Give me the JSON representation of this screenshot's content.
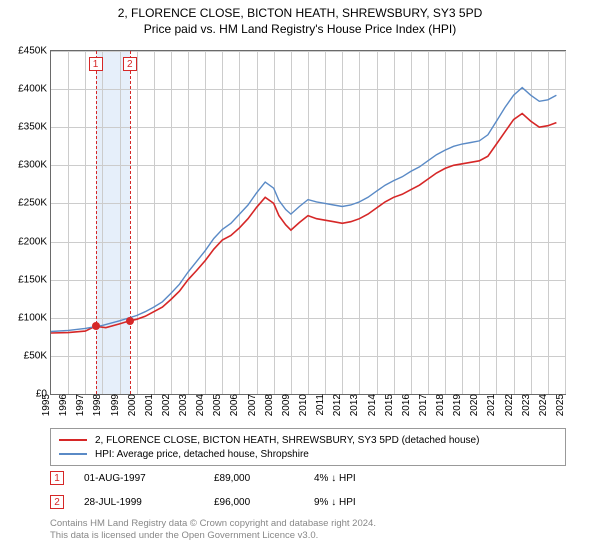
{
  "title_line1": "2, FLORENCE CLOSE, BICTON HEATH, SHREWSBURY, SY3 5PD",
  "title_line2": "Price paid vs. HM Land Registry's House Price Index (HPI)",
  "chart": {
    "type": "line",
    "background_color": "#ffffff",
    "grid_color": "#cccccc",
    "axis_color": "#6a6a6a",
    "xlim": [
      1995,
      2025
    ],
    "ylim": [
      0,
      450000
    ],
    "ytick_step": 50000,
    "ytick_labels": [
      "£0",
      "£50K",
      "£100K",
      "£150K",
      "£200K",
      "£250K",
      "£300K",
      "£350K",
      "£400K",
      "£450K"
    ],
    "xtick_step": 1,
    "xtick_labels": [
      "1995",
      "1996",
      "1997",
      "1998",
      "1999",
      "2000",
      "2001",
      "2002",
      "2003",
      "2004",
      "2005",
      "2006",
      "2007",
      "2008",
      "2009",
      "2010",
      "2011",
      "2012",
      "2013",
      "2014",
      "2015",
      "2016",
      "2017",
      "2018",
      "2019",
      "2020",
      "2021",
      "2022",
      "2023",
      "2024",
      "2025"
    ],
    "tick_fontsize": 10,
    "title_fontsize": 12,
    "highlight_band": {
      "from": 1997.6,
      "to": 1999.6,
      "color": "#e6effa"
    },
    "series": [
      {
        "id": "price_paid",
        "label": "2, FLORENCE CLOSE, BICTON HEATH, SHREWSBURY, SY3 5PD (detached house)",
        "color": "#d62727",
        "line_width": 1.6,
        "data": [
          [
            1995.0,
            80000
          ],
          [
            1996.0,
            80500
          ],
          [
            1997.0,
            82500
          ],
          [
            1997.6,
            89000
          ],
          [
            1998.2,
            87000
          ],
          [
            1999.0,
            92000
          ],
          [
            1999.6,
            96000
          ],
          [
            2000.0,
            98000
          ],
          [
            2000.5,
            102000
          ],
          [
            2001.0,
            108000
          ],
          [
            2001.5,
            114000
          ],
          [
            2002.0,
            124000
          ],
          [
            2002.5,
            135000
          ],
          [
            2003.0,
            150000
          ],
          [
            2003.5,
            162000
          ],
          [
            2004.0,
            175000
          ],
          [
            2004.5,
            190000
          ],
          [
            2005.0,
            202000
          ],
          [
            2005.5,
            208000
          ],
          [
            2006.0,
            218000
          ],
          [
            2006.5,
            230000
          ],
          [
            2007.0,
            245000
          ],
          [
            2007.5,
            258000
          ],
          [
            2008.0,
            250000
          ],
          [
            2008.3,
            234000
          ],
          [
            2008.7,
            222000
          ],
          [
            2009.0,
            215000
          ],
          [
            2009.5,
            225000
          ],
          [
            2010.0,
            234000
          ],
          [
            2010.5,
            230000
          ],
          [
            2011.0,
            228000
          ],
          [
            2011.5,
            226000
          ],
          [
            2012.0,
            224000
          ],
          [
            2012.5,
            226000
          ],
          [
            2013.0,
            230000
          ],
          [
            2013.5,
            236000
          ],
          [
            2014.0,
            244000
          ],
          [
            2014.5,
            252000
          ],
          [
            2015.0,
            258000
          ],
          [
            2015.5,
            262000
          ],
          [
            2016.0,
            268000
          ],
          [
            2016.5,
            274000
          ],
          [
            2017.0,
            282000
          ],
          [
            2017.5,
            290000
          ],
          [
            2018.0,
            296000
          ],
          [
            2018.5,
            300000
          ],
          [
            2019.0,
            302000
          ],
          [
            2019.5,
            304000
          ],
          [
            2020.0,
            306000
          ],
          [
            2020.5,
            312000
          ],
          [
            2021.0,
            328000
          ],
          [
            2021.5,
            344000
          ],
          [
            2022.0,
            360000
          ],
          [
            2022.5,
            368000
          ],
          [
            2023.0,
            358000
          ],
          [
            2023.5,
            350000
          ],
          [
            2024.0,
            352000
          ],
          [
            2024.5,
            356000
          ]
        ]
      },
      {
        "id": "hpi",
        "label": "HPI: Average price, detached house, Shropshire",
        "color": "#5a8ac6",
        "line_width": 1.4,
        "data": [
          [
            1995.0,
            82000
          ],
          [
            1996.0,
            83500
          ],
          [
            1997.0,
            86000
          ],
          [
            1998.0,
            90000
          ],
          [
            1999.0,
            96000
          ],
          [
            2000.0,
            103000
          ],
          [
            2000.5,
            108000
          ],
          [
            2001.0,
            114000
          ],
          [
            2001.5,
            121000
          ],
          [
            2002.0,
            132000
          ],
          [
            2002.5,
            144000
          ],
          [
            2003.0,
            160000
          ],
          [
            2003.5,
            174000
          ],
          [
            2004.0,
            188000
          ],
          [
            2004.5,
            204000
          ],
          [
            2005.0,
            216000
          ],
          [
            2005.5,
            224000
          ],
          [
            2006.0,
            236000
          ],
          [
            2006.5,
            248000
          ],
          [
            2007.0,
            264000
          ],
          [
            2007.5,
            278000
          ],
          [
            2008.0,
            270000
          ],
          [
            2008.3,
            254000
          ],
          [
            2008.7,
            242000
          ],
          [
            2009.0,
            236000
          ],
          [
            2009.5,
            246000
          ],
          [
            2010.0,
            255000
          ],
          [
            2010.5,
            252000
          ],
          [
            2011.0,
            250000
          ],
          [
            2011.5,
            248000
          ],
          [
            2012.0,
            246000
          ],
          [
            2012.5,
            248000
          ],
          [
            2013.0,
            252000
          ],
          [
            2013.5,
            258000
          ],
          [
            2014.0,
            266000
          ],
          [
            2014.5,
            274000
          ],
          [
            2015.0,
            280000
          ],
          [
            2015.5,
            285000
          ],
          [
            2016.0,
            292000
          ],
          [
            2016.5,
            298000
          ],
          [
            2017.0,
            306000
          ],
          [
            2017.5,
            314000
          ],
          [
            2018.0,
            320000
          ],
          [
            2018.5,
            325000
          ],
          [
            2019.0,
            328000
          ],
          [
            2019.5,
            330000
          ],
          [
            2020.0,
            332000
          ],
          [
            2020.5,
            340000
          ],
          [
            2021.0,
            358000
          ],
          [
            2021.5,
            376000
          ],
          [
            2022.0,
            392000
          ],
          [
            2022.5,
            402000
          ],
          [
            2023.0,
            392000
          ],
          [
            2023.5,
            384000
          ],
          [
            2024.0,
            386000
          ],
          [
            2024.5,
            392000
          ]
        ]
      }
    ],
    "events": [
      {
        "n": "1",
        "year": 1997.6,
        "value": 89000
      },
      {
        "n": "2",
        "year": 1999.6,
        "value": 96000
      }
    ],
    "event_line_color": "#d62727",
    "event_marker_color": "#d62727",
    "marker_dot_color": "#d62727"
  },
  "legend": {
    "border_color": "#999999",
    "fontsize": 10
  },
  "event_table": {
    "rows": [
      {
        "n": "1",
        "date": "01-AUG-1997",
        "price": "£89,000",
        "delta": "4% ↓ HPI"
      },
      {
        "n": "2",
        "date": "28-JUL-1999",
        "price": "£96,000",
        "delta": "9% ↓ HPI"
      }
    ]
  },
  "footnote_line1": "Contains HM Land Registry data © Crown copyright and database right 2024.",
  "footnote_line2": "This data is licensed under the Open Government Licence v3.0."
}
